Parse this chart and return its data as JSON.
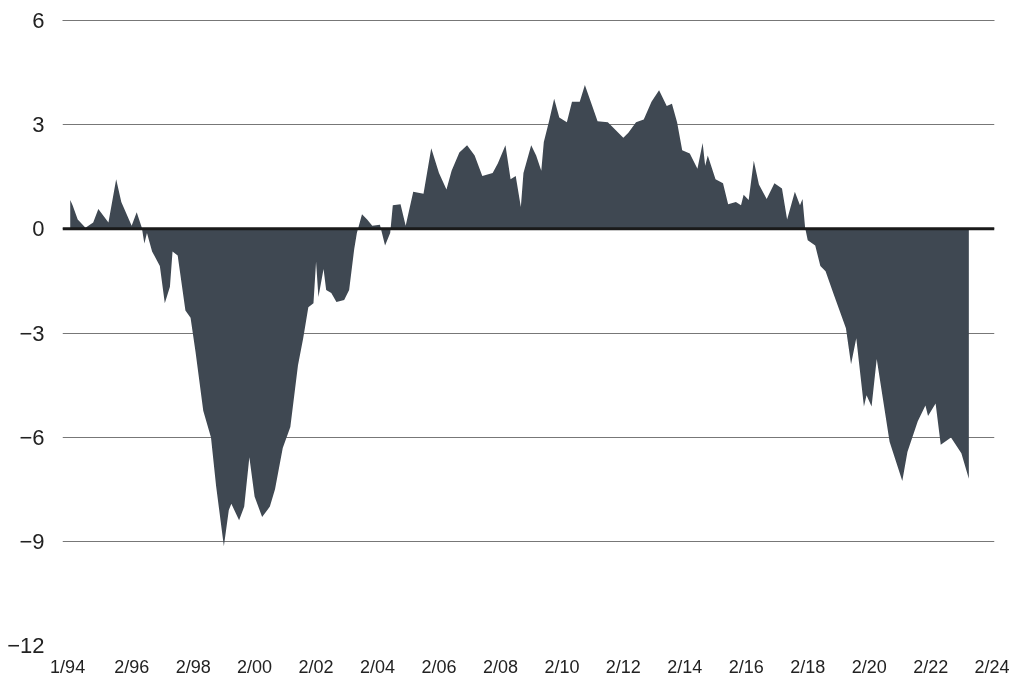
{
  "chart_data": {
    "type": "area",
    "x": [
      "1994-02",
      "1994-03",
      "1994-05",
      "1994-08",
      "1994-11",
      "1995-01",
      "1995-05",
      "1995-08",
      "1995-10",
      "1996-02",
      "1996-04",
      "1996-06",
      "1996-07",
      "1996-08",
      "1996-10",
      "1997-01",
      "1997-03",
      "1997-05",
      "1997-06",
      "1997-08",
      "1997-11",
      "1998-01",
      "1998-03",
      "1998-06",
      "1998-09",
      "1998-11",
      "1999-02",
      "1999-04",
      "1999-05",
      "1999-08",
      "1999-10",
      "1999-12",
      "2000-02",
      "2000-05",
      "2000-08",
      "2000-10",
      "2001-01",
      "2001-04",
      "2001-07",
      "2001-09",
      "2001-11",
      "2002-01",
      "2002-02",
      "2002-03",
      "2002-05",
      "2002-06",
      "2002-08",
      "2002-10",
      "2003-01",
      "2003-03",
      "2003-05",
      "2003-06",
      "2003-08",
      "2003-10",
      "2003-12",
      "2004-03",
      "2004-05",
      "2004-07",
      "2004-08",
      "2004-11",
      "2005-01",
      "2005-04",
      "2005-08",
      "2005-11",
      "2006-02",
      "2006-05",
      "2006-07",
      "2006-10",
      "2007-01",
      "2007-04",
      "2007-07",
      "2007-11",
      "2008-01",
      "2008-04",
      "2008-06",
      "2008-08",
      "2008-10",
      "2008-11",
      "2009-02",
      "2009-04",
      "2009-06",
      "2009-07",
      "2009-09",
      "2009-11",
      "2010-01",
      "2010-04",
      "2010-06",
      "2010-09",
      "2010-11",
      "2011-02",
      "2011-04",
      "2011-08",
      "2012-02",
      "2012-04",
      "2012-07",
      "2012-10",
      "2013-01",
      "2013-04",
      "2013-07",
      "2013-09",
      "2013-11",
      "2014-01",
      "2014-04",
      "2014-07",
      "2014-09",
      "2014-10",
      "2014-11",
      "2015-02",
      "2015-05",
      "2015-07",
      "2015-10",
      "2015-12",
      "2016-01",
      "2016-03",
      "2016-05",
      "2016-07",
      "2016-10",
      "2017-01",
      "2017-04",
      "2017-06",
      "2017-09",
      "2017-11",
      "2017-12",
      "2018-01",
      "2018-02",
      "2018-05",
      "2018-07",
      "2018-09",
      "2018-12",
      "2019-05",
      "2019-07",
      "2019-09",
      "2019-12",
      "2020-01",
      "2020-03",
      "2020-05",
      "2020-10",
      "2021-03",
      "2021-05",
      "2021-09",
      "2021-12",
      "2022-01",
      "2022-04",
      "2022-06",
      "2022-10",
      "2023-02",
      "2023-05"
    ],
    "values": [
      0.83,
      0.68,
      0.27,
      0.03,
      0.18,
      0.57,
      0.18,
      1.43,
      0.77,
      0.09,
      0.48,
      0.03,
      -0.42,
      -0.12,
      -0.65,
      -1.07,
      -2.14,
      -1.67,
      -0.65,
      -0.77,
      -2.35,
      -2.56,
      -3.54,
      -5.24,
      -6.01,
      -7.41,
      -9.14,
      -8.1,
      -7.92,
      -8.39,
      -8.0,
      -6.58,
      -7.71,
      -8.3,
      -8.0,
      -7.5,
      -6.31,
      -5.71,
      -3.93,
      -3.15,
      -2.26,
      -2.14,
      -0.95,
      -1.96,
      -1.16,
      -1.76,
      -1.85,
      -2.11,
      -2.05,
      -1.76,
      -0.57,
      -0.12,
      0.42,
      0.27,
      0.09,
      0.12,
      -0.48,
      -0.12,
      0.68,
      0.71,
      0.09,
      1.07,
      1.01,
      2.32,
      1.61,
      1.13,
      1.67,
      2.2,
      2.41,
      2.11,
      1.52,
      1.61,
      1.88,
      2.41,
      1.43,
      1.52,
      0.63,
      1.61,
      2.41,
      2.11,
      1.67,
      2.5,
      3.1,
      3.75,
      3.21,
      3.07,
      3.66,
      3.66,
      4.14,
      3.51,
      3.1,
      3.07,
      2.62,
      2.77,
      3.07,
      3.15,
      3.66,
      3.99,
      3.54,
      3.6,
      3.07,
      2.26,
      2.17,
      1.73,
      2.47,
      1.82,
      2.11,
      1.43,
      1.31,
      0.71,
      0.77,
      0.68,
      0.98,
      0.83,
      1.96,
      1.28,
      0.86,
      1.31,
      1.16,
      0.27,
      1.07,
      0.68,
      0.86,
      0.03,
      -0.33,
      -0.48,
      -1.07,
      -1.22,
      -1.85,
      -2.86,
      -3.9,
      -3.15,
      -5.12,
      -4.79,
      -5.12,
      -3.75,
      -6.13,
      -7.26,
      -6.43,
      -5.54,
      -5.09,
      -5.39,
      -5.03,
      -6.22,
      -6.01,
      -6.46,
      -7.2
    ],
    "color": "#3f4852",
    "ylim": [
      -12,
      6
    ],
    "yticks": [
      -12,
      -9,
      -6,
      -3,
      0,
      3,
      6
    ],
    "xlim": [
      "1993-11",
      "2024-03"
    ],
    "xticks": [
      {
        "value": "1994-01",
        "label": "1/94"
      },
      {
        "value": "1996-02",
        "label": "2/96"
      },
      {
        "value": "1998-02",
        "label": "2/98"
      },
      {
        "value": "2000-02",
        "label": "2/00"
      },
      {
        "value": "2002-02",
        "label": "2/02"
      },
      {
        "value": "2004-02",
        "label": "2/04"
      },
      {
        "value": "2006-02",
        "label": "2/06"
      },
      {
        "value": "2008-02",
        "label": "2/08"
      },
      {
        "value": "2010-02",
        "label": "2/10"
      },
      {
        "value": "2012-02",
        "label": "2/12"
      },
      {
        "value": "2014-02",
        "label": "2/14"
      },
      {
        "value": "2016-02",
        "label": "2/16"
      },
      {
        "value": "2018-02",
        "label": "2/18"
      },
      {
        "value": "2020-02",
        "label": "2/20"
      },
      {
        "value": "2022-02",
        "label": "2/22"
      },
      {
        "value": "2024-02",
        "label": "2/24"
      }
    ],
    "ref_lines": [
      {
        "axis": "y",
        "value": 0,
        "color": "#1a1a1a"
      }
    ],
    "grid": "y"
  }
}
